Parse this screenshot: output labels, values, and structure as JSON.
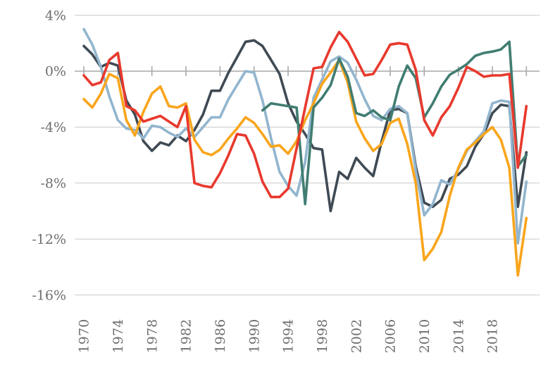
{
  "chart_data": {
    "type": "line",
    "title": "",
    "xlabel": "",
    "ylabel": "",
    "x_start_year": 1970,
    "x_end_year": 2022,
    "x_axis": {
      "label_years": [
        1970,
        1974,
        1978,
        1982,
        1986,
        1990,
        1994,
        1998,
        2002,
        2006,
        2010,
        2014,
        2018
      ],
      "tick_step_years": 4,
      "axis_end_tick_year": 2022
    },
    "y_axis": {
      "ticks": [
        {
          "value": 4,
          "label": "4%"
        },
        {
          "value": 0,
          "label": "0%"
        },
        {
          "value": -4,
          "label": "-4%"
        },
        {
          "value": -8,
          "label": "-8%"
        },
        {
          "value": -12,
          "label": "-12%"
        },
        {
          "value": -16,
          "label": "-16%"
        }
      ],
      "ylim": [
        -17.5,
        4.5
      ],
      "grid": true
    },
    "legend": "none",
    "colors": {
      "charcoal": "#3f4a54",
      "light_blue": "#92b5ce",
      "orange": "#f9a51b",
      "teal": "#417d72",
      "red": "#e8392d",
      "gridline": "#c9c9c9",
      "axis_text": "#6e6e6e"
    },
    "series": [
      {
        "name": "charcoal",
        "color": "#3f4a54",
        "values": [
          1.8,
          1.2,
          0.3,
          0.6,
          0.4,
          -2.1,
          -3.1,
          -5.0,
          -5.7,
          -5.1,
          -5.3,
          -4.6,
          -5.0,
          -4.2,
          -3.1,
          -1.4,
          -1.4,
          -0.1,
          1.0,
          2.1,
          2.2,
          1.8,
          0.8,
          -0.2,
          -2.3,
          -3.6,
          -4.5,
          -5.5,
          -5.6,
          -10.0,
          -7.2,
          -7.7,
          -6.2,
          -6.9,
          -7.5,
          -5.0,
          -2.8,
          -2.7,
          -3.0,
          -6.8,
          -9.4,
          -9.7,
          -9.2,
          -7.7,
          -7.4,
          -6.8,
          -5.4,
          -4.5,
          -3.0,
          -2.4,
          -2.5,
          -9.7,
          -5.8
        ]
      },
      {
        "name": "light-blue",
        "color": "#92b5ce",
        "values": [
          3.0,
          1.9,
          0.3,
          -1.8,
          -3.5,
          -4.1,
          -4.2,
          -4.8,
          -3.9,
          -4.0,
          -4.4,
          -4.7,
          -4.1,
          -4.7,
          -4.0,
          -3.3,
          -3.3,
          -2.0,
          -1.0,
          0.0,
          -0.1,
          -2.1,
          -4.8,
          -7.2,
          -8.2,
          -8.9,
          -6.5,
          -1.9,
          -0.6,
          0.7,
          1.05,
          0.6,
          -0.6,
          -2.0,
          -3.2,
          -3.5,
          -2.7,
          -2.5,
          -3.0,
          -7.1,
          -10.3,
          -9.5,
          -7.8,
          -8.1,
          -7.0,
          -5.7,
          -5.0,
          -4.3,
          -2.3,
          -2.1,
          -2.2,
          -12.3,
          -7.9
        ]
      },
      {
        "name": "orange",
        "color": "#f9a51b",
        "values": [
          -2.0,
          -2.6,
          -1.6,
          -0.2,
          -0.5,
          -3.5,
          -4.6,
          -2.9,
          -1.6,
          -1.1,
          -2.5,
          -2.6,
          -2.3,
          -4.9,
          -5.8,
          -6.0,
          -5.6,
          -4.8,
          -4.1,
          -3.3,
          -3.7,
          -4.5,
          -5.4,
          -5.3,
          -5.9,
          -5.0,
          -3.5,
          -2.3,
          -0.9,
          -0.1,
          0.8,
          -0.8,
          -3.6,
          -4.8,
          -5.7,
          -5.2,
          -3.7,
          -3.4,
          -5.2,
          -8.0,
          -13.5,
          -12.7,
          -11.5,
          -8.9,
          -6.9,
          -5.6,
          -5.1,
          -4.5,
          -4.0,
          -4.9,
          -6.9,
          -14.6,
          -10.5
        ]
      },
      {
        "name": "teal",
        "color": "#417d72",
        "values": [
          null,
          null,
          null,
          null,
          null,
          null,
          null,
          null,
          null,
          null,
          null,
          null,
          null,
          null,
          null,
          null,
          null,
          null,
          null,
          null,
          null,
          -2.8,
          -2.3,
          -2.4,
          -2.5,
          -2.6,
          -9.5,
          -2.6,
          -1.9,
          -1.0,
          0.9,
          -0.4,
          -3.0,
          -3.2,
          -2.8,
          -3.3,
          -3.5,
          -1.1,
          0.4,
          -0.5,
          -3.3,
          -2.3,
          -1.1,
          -0.25,
          0.1,
          0.5,
          1.1,
          1.3,
          1.4,
          1.55,
          2.1,
          -6.8,
          -6.0
        ]
      },
      {
        "name": "red",
        "color": "#e8392d",
        "values": [
          -0.3,
          -1.0,
          -0.8,
          0.8,
          1.3,
          -2.5,
          -2.8,
          -3.6,
          -3.4,
          -3.2,
          -3.6,
          -4.0,
          -2.5,
          -8.0,
          -8.2,
          -8.3,
          -7.3,
          -6.0,
          -4.5,
          -4.6,
          -5.9,
          -7.9,
          -9.0,
          -9.0,
          -8.4,
          -5.5,
          -2.6,
          0.2,
          0.3,
          1.7,
          2.8,
          2.1,
          0.9,
          -0.3,
          -0.2,
          0.8,
          1.9,
          2.0,
          1.9,
          0.1,
          -3.5,
          -4.6,
          -3.3,
          -2.5,
          -1.2,
          0.3,
          0.0,
          -0.4,
          -0.3,
          -0.3,
          -0.2,
          -6.9,
          -2.5
        ]
      }
    ]
  }
}
